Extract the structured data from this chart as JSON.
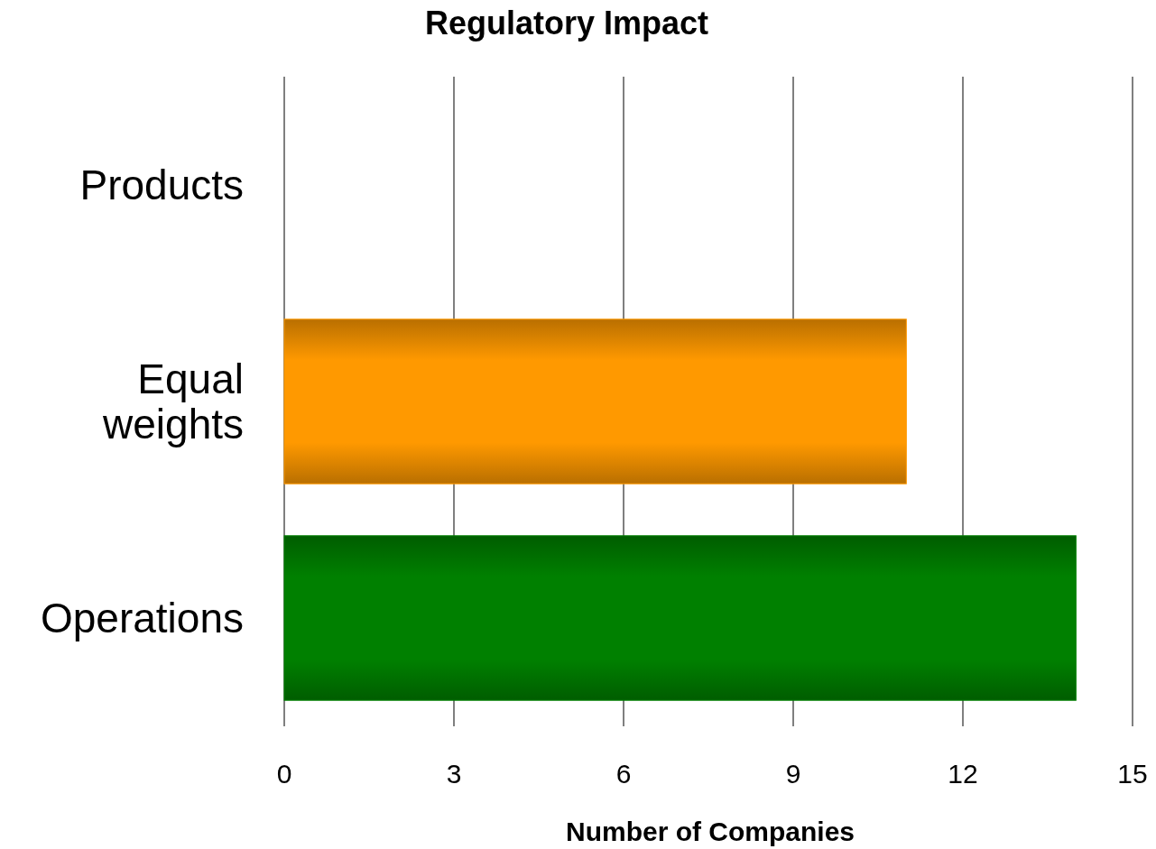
{
  "chart_data": {
    "type": "bar",
    "orientation": "horizontal",
    "title": "Regulatory Impact",
    "xlabel": "Number of Companies",
    "categories": [
      "Products",
      "Equal weights",
      "Operations"
    ],
    "values": [
      0,
      11,
      14
    ],
    "colors": [
      "#0000ff",
      "#ff9900",
      "#008000"
    ],
    "xlim": [
      0,
      15
    ],
    "xticks": [
      0,
      3,
      6,
      9,
      12,
      15
    ],
    "grid": "x"
  }
}
